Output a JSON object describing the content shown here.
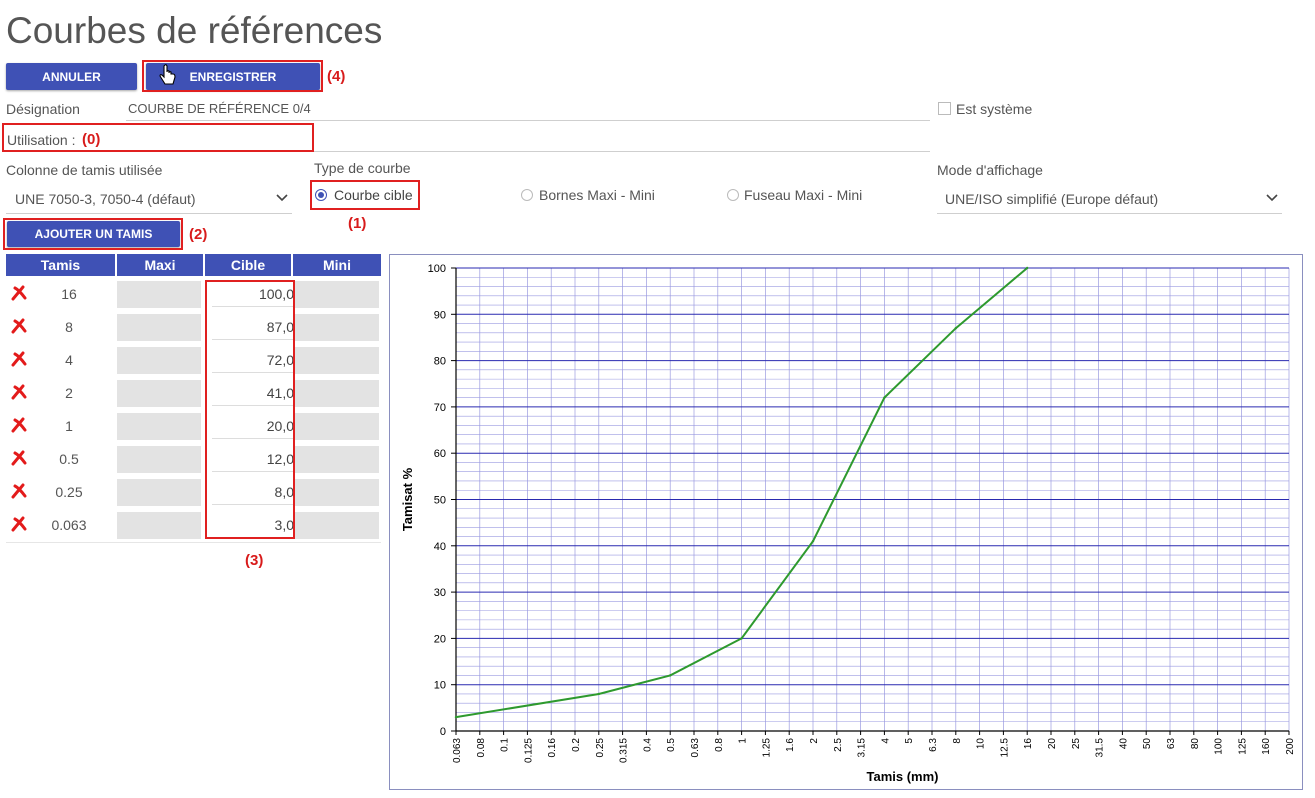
{
  "page": {
    "title": "Courbes de références"
  },
  "toolbar": {
    "cancel_label": "ANNULER",
    "save_label": "ENREGISTRER"
  },
  "annotations": {
    "a0": "(0)",
    "a1": "(1)",
    "a2": "(2)",
    "a3": "(3)",
    "a4": "(4)"
  },
  "form": {
    "designation_label": "Désignation",
    "designation_value": "COURBE DE RÉFÉRENCE 0/4",
    "system_label": "Est système",
    "usage_label": "Utilisation :",
    "sieve_column_label": "Colonne de tamis utilisée",
    "sieve_column_value": "UNE 7050-3, 7050-4 (défaut)",
    "curve_type_label": "Type de courbe",
    "curve_type_options": [
      "Courbe cible",
      "Bornes Maxi - Mini",
      "Fuseau Maxi - Mini"
    ],
    "curve_type_selected": "Courbe cible",
    "display_mode_label": "Mode d'affichage",
    "display_mode_value": "UNE/ISO simplifié (Europe défaut)",
    "add_sieve_label": "AJOUTER UN TAMIS"
  },
  "table": {
    "headers": [
      "Tamis",
      "Maxi",
      "Cible",
      "Mini"
    ],
    "rows": [
      {
        "tamis": "16",
        "cible": "100,0"
      },
      {
        "tamis": "8",
        "cible": "87,0"
      },
      {
        "tamis": "4",
        "cible": "72,0"
      },
      {
        "tamis": "2",
        "cible": "41,0"
      },
      {
        "tamis": "1",
        "cible": "20,0"
      },
      {
        "tamis": "0.5",
        "cible": "12,0"
      },
      {
        "tamis": "0.25",
        "cible": "8,0"
      },
      {
        "tamis": "0.063",
        "cible": "3,0"
      }
    ]
  },
  "chart_data": {
    "type": "line",
    "title": "",
    "xlabel": "Tamis (mm)",
    "ylabel": "Tamisat %",
    "x_categories": [
      "0.063",
      "0.08",
      "0.1",
      "0.125",
      "0.16",
      "0.2",
      "0.25",
      "0.315",
      "0.4",
      "0.5",
      "0.63",
      "0.8",
      "1",
      "1.25",
      "1.6",
      "2",
      "2.5",
      "3.15",
      "4",
      "5",
      "6.3",
      "8",
      "10",
      "12.5",
      "16",
      "20",
      "25",
      "31.5",
      "40",
      "50",
      "63",
      "80",
      "100",
      "125",
      "160",
      "200"
    ],
    "ylim": [
      0,
      100
    ],
    "y_ticks": [
      0,
      10,
      20,
      30,
      40,
      50,
      60,
      70,
      80,
      90,
      100
    ],
    "grid": true,
    "series": [
      {
        "name": "Cible",
        "color": "#2e9a2e",
        "x": [
          "0.063",
          "0.25",
          "0.5",
          "1",
          "2",
          "4",
          "8",
          "16"
        ],
        "values": [
          3,
          8,
          12,
          20,
          41,
          72,
          87,
          100
        ]
      }
    ]
  },
  "colors": {
    "accent": "#3f51b5",
    "annotation": "#e02020",
    "curve": "#2e9a2e",
    "grid_major": "#2a2ab0",
    "grid_minor": "#9a9ae0"
  }
}
